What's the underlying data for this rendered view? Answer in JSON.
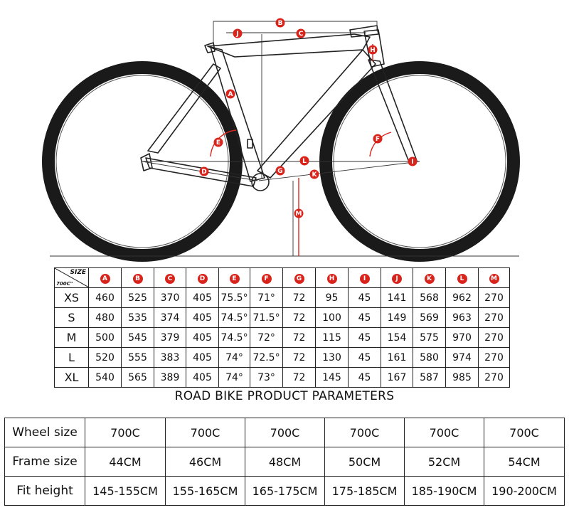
{
  "diagram": {
    "labels": [
      "A",
      "B",
      "C",
      "D",
      "E",
      "F",
      "G",
      "H",
      "I",
      "J",
      "K",
      "L",
      "M"
    ],
    "accent": "#d9241c"
  },
  "geometry_table": {
    "corner_size": "SIZE",
    "corner_wheel": "700C\"",
    "columns": [
      "A",
      "B",
      "C",
      "D",
      "E",
      "F",
      "G",
      "H",
      "I",
      "J",
      "K",
      "L",
      "M"
    ],
    "rows": [
      {
        "size": "XS",
        "values": [
          "460",
          "525",
          "370",
          "405",
          "75.5°",
          "71°",
          "72",
          "95",
          "45",
          "141",
          "568",
          "962",
          "270"
        ]
      },
      {
        "size": "S",
        "values": [
          "480",
          "535",
          "374",
          "405",
          "74.5°",
          "71.5°",
          "72",
          "100",
          "45",
          "149",
          "569",
          "963",
          "270"
        ]
      },
      {
        "size": "M",
        "values": [
          "500",
          "545",
          "379",
          "405",
          "74.5°",
          "72°",
          "72",
          "115",
          "45",
          "154",
          "575",
          "970",
          "270"
        ]
      },
      {
        "size": "L",
        "values": [
          "520",
          "555",
          "383",
          "405",
          "74°",
          "72.5°",
          "72",
          "130",
          "45",
          "161",
          "580",
          "974",
          "270"
        ]
      },
      {
        "size": "XL",
        "values": [
          "540",
          "565",
          "389",
          "405",
          "74°",
          "73°",
          "72",
          "145",
          "45",
          "167",
          "587",
          "985",
          "270"
        ]
      }
    ]
  },
  "params_title": "ROAD BIKE PRODUCT PARAMETERS",
  "fit_table": {
    "rows": [
      {
        "label": "Wheel size",
        "values": [
          "700C",
          "700C",
          "700C",
          "700C",
          "700C",
          "700C"
        ]
      },
      {
        "label": "Frame size",
        "values": [
          "44CM",
          "46CM",
          "48CM",
          "50CM",
          "52CM",
          "54CM"
        ]
      },
      {
        "label": "Fit  height",
        "values": [
          "145-155CM",
          "155-165CM",
          "165-175CM",
          "175-185CM",
          "185-190CM",
          "190-200CM"
        ]
      }
    ]
  }
}
